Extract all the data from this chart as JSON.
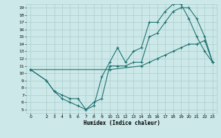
{
  "xlabel": "Humidex (Indice chaleur)",
  "ylabel": "",
  "bg_color": "#cce8e8",
  "grid_color": "#aacccc",
  "line_color": "#1a6e6e",
  "xlim": [
    -0.5,
    23.5
  ],
  "ylim": [
    4.5,
    19.5
  ],
  "xticks": [
    0,
    2,
    3,
    4,
    5,
    6,
    7,
    8,
    9,
    10,
    11,
    12,
    13,
    14,
    15,
    16,
    17,
    18,
    19,
    20,
    21,
    22,
    23
  ],
  "yticks": [
    5,
    6,
    7,
    8,
    9,
    10,
    11,
    12,
    13,
    14,
    15,
    16,
    17,
    18,
    19
  ],
  "line1_x": [
    0,
    2,
    3,
    4,
    5,
    6,
    7,
    8,
    9,
    10,
    11,
    12,
    13,
    14,
    15,
    16,
    17,
    18,
    19,
    20,
    21,
    22,
    23
  ],
  "line1_y": [
    10.5,
    9.0,
    7.5,
    6.5,
    6.0,
    5.5,
    5.0,
    5.5,
    9.5,
    11.5,
    13.5,
    11.5,
    13.0,
    13.5,
    17.0,
    17.0,
    18.5,
    19.5,
    19.5,
    17.5,
    15.0,
    13.0,
    11.5
  ],
  "line2_x": [
    0,
    2,
    3,
    4,
    5,
    6,
    7,
    8,
    9,
    10,
    11,
    12,
    13,
    14,
    15,
    16,
    17,
    18,
    19,
    20,
    21,
    22,
    23
  ],
  "line2_y": [
    10.5,
    9.0,
    7.5,
    7.0,
    6.5,
    6.5,
    5.0,
    6.0,
    6.5,
    11.0,
    11.0,
    11.0,
    11.5,
    11.5,
    15.0,
    15.5,
    17.0,
    18.5,
    19.0,
    19.0,
    17.5,
    15.0,
    11.5
  ],
  "line3_x": [
    0,
    10,
    14,
    15,
    16,
    17,
    18,
    19,
    20,
    21,
    22,
    23
  ],
  "line3_y": [
    10.5,
    10.5,
    11.0,
    11.5,
    12.0,
    12.5,
    13.0,
    13.5,
    14.0,
    14.0,
    14.5,
    11.5
  ]
}
